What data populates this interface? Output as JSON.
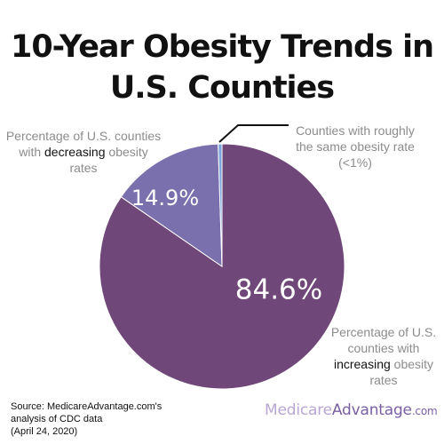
{
  "title_line1": "10-Year Obesity Trends in",
  "title_line2": "U.S. Counties",
  "annotations": {
    "decreasing": {
      "pre": "Percentage of U.S. counties with ",
      "bold": "decreasing",
      "post": " obesity rates"
    },
    "same": {
      "text": "Counties with roughly the same obesity rate (<1%)"
    },
    "increasing": {
      "pre": "Percentage of U.S. counties with ",
      "bold": "increasing",
      "post": " obesity rates"
    }
  },
  "source": {
    "line1": "Source: MedicareAdvantage.com's",
    "line2": "analysis of CDC data",
    "line3": "(April 24, 2020)"
  },
  "logo": {
    "part1": "Medicare",
    "part2": "Advantage",
    "part3": ".com"
  },
  "chart_data": {
    "type": "pie",
    "title": "10-Year Obesity Trends in U.S. Counties",
    "slices": [
      {
        "value": 84.6,
        "label": "84.6%",
        "color": "#6f4778"
      },
      {
        "value": 14.9,
        "label": "14.9%",
        "color": "#7a70ad"
      },
      {
        "value": 0.5,
        "label": "",
        "color": "#7ba6d9"
      }
    ]
  }
}
